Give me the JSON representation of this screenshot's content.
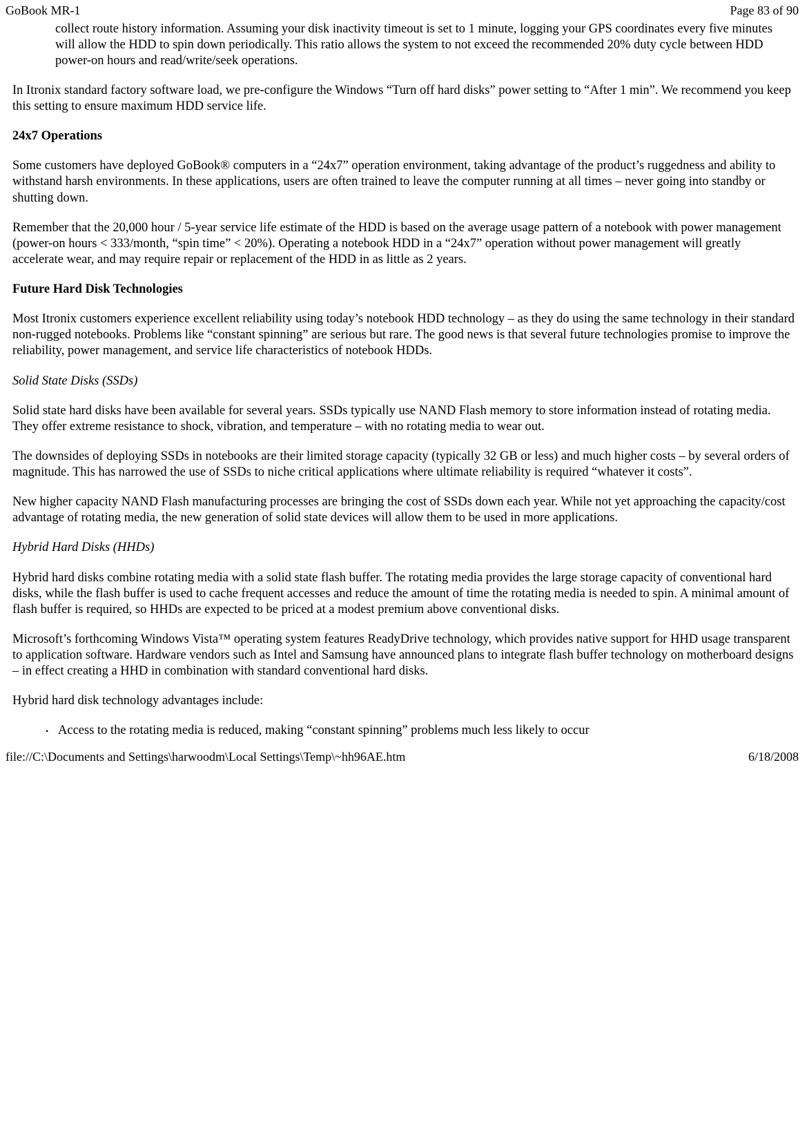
{
  "header": {
    "title": "GoBook MR-1",
    "page_label": "Page 83 of 90"
  },
  "top_indent_para": "collect route history information.  Assuming your disk inactivity timeout is set to 1 minute, logging your GPS coordinates every five minutes will allow the HDD to spin down periodically.  This ratio allows the system to not exceed the recommended 20% duty cycle between HDD power-on hours and read/write/seek operations.",
  "intro_para": "In Itronix standard factory software load, we pre-configure the Windows “Turn off hard disks” power setting to “After 1 min”.  We recommend you keep this setting to ensure maximum HDD service life.",
  "section_24x7": {
    "heading": "24x7 Operations",
    "para1": "Some customers have deployed GoBook® computers in a “24x7” operation environment, taking advantage of the product’s ruggedness and ability to withstand harsh environments.   In these applications, users are often trained to leave the computer running at all times – never going into standby or shutting down.",
    "para2": "Remember that the 20,000 hour / 5-year service life estimate of the HDD is based on the average usage pattern of a notebook with power management (power-on hours < 333/month, “spin time” < 20%).  Operating a notebook HDD in a “24x7” operation without power management will greatly accelerate wear, and may require repair or replacement of the HDD in as little as 2 years."
  },
  "section_future": {
    "heading": "Future Hard Disk Technologies",
    "para1": "Most Itronix customers experience excellent reliability using today’s notebook HDD technology – as they do using the same technology in their standard non-rugged notebooks.  Problems like “constant spinning” are serious but rare.  The good news is that several future technologies promise to improve the reliability, power management, and service life characteristics of notebook HDDs."
  },
  "section_ssd": {
    "heading": "Solid State Disks (SSDs)",
    "para1": "Solid state hard disks have been available for several years.  SSDs typically use NAND Flash memory to store information instead of rotating media.  They offer extreme resistance to shock, vibration, and temperature – with no rotating media to wear out.",
    "para2": "The downsides of deploying SSDs in notebooks are their limited storage capacity (typically 32 GB or less) and much higher costs – by several orders of magnitude.  This has narrowed the use of SSDs to niche critical applications where ultimate reliability is required “whatever it costs”.",
    "para3": "New higher capacity NAND Flash manufacturing processes are bringing the cost of SSDs down each year.  While not yet approaching the capacity/cost advantage of rotating media, the new generation of solid state devices will allow them to be used in more applications."
  },
  "section_hhd": {
    "heading": "Hybrid Hard Disks (HHDs)",
    "para1": "Hybrid hard disks combine rotating media with a solid state flash buffer.  The rotating media provides the large storage capacity of conventional hard disks, while the flash buffer is used to cache frequent accesses and reduce the amount of time the rotating media is needed to spin.  A minimal amount of flash buffer is required, so HHDs are expected to be priced at a modest premium above conventional disks.",
    "para2": "Microsoft’s forthcoming Windows Vista™ operating system features ReadyDrive technology, which provides native support for HHD usage transparent to application software.  Hardware vendors such as Intel and Samsung have announced plans to integrate flash buffer technology on motherboard designs – in effect creating a HHD in combination with standard conventional hard disks.",
    "para3": "Hybrid hard disk technology advantages include:",
    "bullet1": "Access to the rotating media is reduced, making “constant spinning” problems much less likely to occur"
  },
  "footer": {
    "path": "file://C:\\Documents and Settings\\harwoodm\\Local Settings\\Temp\\~hh96AE.htm",
    "date": "6/18/2008"
  }
}
